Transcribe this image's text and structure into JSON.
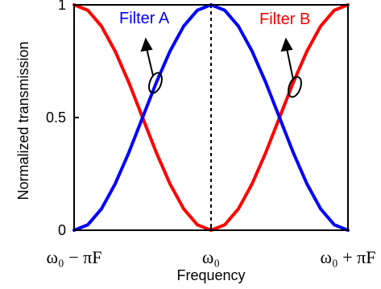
{
  "chart_data": {
    "type": "line",
    "xlabel": "Frequency",
    "ylabel": "Normalized transmission",
    "xlim": [
      -1,
      1
    ],
    "ylim": [
      0,
      1
    ],
    "x_ticks": [
      {
        "value": -1,
        "label": "ω₀ − πF"
      },
      {
        "value": 0,
        "label": "ω₀"
      },
      {
        "value": 1,
        "label": "ω₀ + πF"
      }
    ],
    "y_ticks": [
      {
        "value": 0,
        "label": "0"
      },
      {
        "value": 0.5,
        "label": "0.5"
      },
      {
        "value": 1,
        "label": "1"
      }
    ],
    "x": [
      -1,
      -0.9,
      -0.8,
      -0.7,
      -0.6,
      -0.5,
      -0.4,
      -0.3,
      -0.2,
      -0.1,
      0,
      0.1,
      0.2,
      0.3,
      0.4,
      0.5,
      0.6,
      0.7,
      0.8,
      0.9,
      1
    ],
    "series": [
      {
        "name": "Filter A",
        "color": "#0000ff",
        "values": [
          0,
          0.024,
          0.095,
          0.206,
          0.345,
          0.5,
          0.655,
          0.794,
          0.905,
          0.976,
          1,
          0.976,
          0.905,
          0.794,
          0.655,
          0.5,
          0.345,
          0.206,
          0.095,
          0.024,
          0
        ]
      },
      {
        "name": "Filter B",
        "color": "#ff0000",
        "values": [
          1,
          0.976,
          0.905,
          0.794,
          0.655,
          0.5,
          0.345,
          0.206,
          0.095,
          0.024,
          0,
          0.024,
          0.095,
          0.206,
          0.345,
          0.5,
          0.655,
          0.794,
          0.905,
          0.976,
          1
        ]
      }
    ],
    "center_line": {
      "x": 0,
      "style": "dashed",
      "color": "#000000"
    },
    "grid": false,
    "legend": "inline labels with arrows pointing to curves"
  }
}
